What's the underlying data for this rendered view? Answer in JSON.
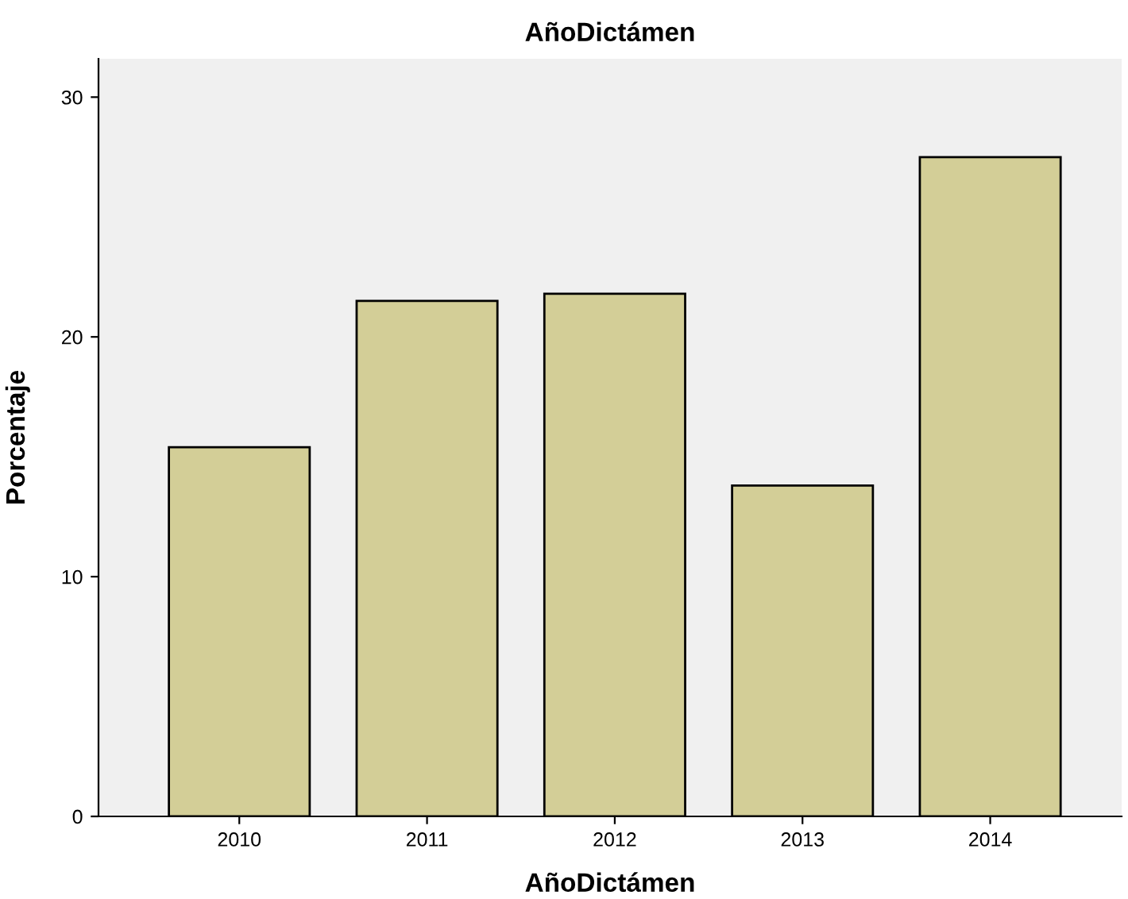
{
  "chart_data": {
    "type": "bar",
    "title": "AñoDictámen",
    "xlabel": "AñoDictámen",
    "ylabel": "Porcentaje",
    "categories": [
      "2010",
      "2011",
      "2012",
      "2013",
      "2014"
    ],
    "values": [
      15.4,
      21.5,
      21.8,
      13.8,
      27.5
    ],
    "color": "#d3ce97",
    "ylim": [
      0,
      31.6
    ],
    "yticks": [
      0,
      10,
      20,
      30
    ],
    "grid": false
  }
}
